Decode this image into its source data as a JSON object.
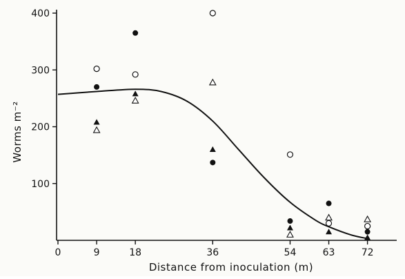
{
  "chart_data": {
    "type": "scatter",
    "title": "",
    "xlabel": "Distance from inoculation  (m)",
    "ylabel": "Worms  m⁻²",
    "xlim": [
      0,
      78
    ],
    "ylim": [
      0,
      400
    ],
    "x_ticks": [
      0,
      9,
      18,
      36,
      54,
      63,
      72
    ],
    "y_ticks": [
      100,
      200,
      300,
      400
    ],
    "grid": false,
    "legend": "none",
    "series": [
      {
        "marker": "filled-circle",
        "points": [
          {
            "x": 9,
            "y": 270
          },
          {
            "x": 18,
            "y": 365
          },
          {
            "x": 36,
            "y": 137
          },
          {
            "x": 54,
            "y": 34
          },
          {
            "x": 63,
            "y": 65
          },
          {
            "x": 72,
            "y": 15
          }
        ]
      },
      {
        "marker": "open-circle",
        "points": [
          {
            "x": 9,
            "y": 302
          },
          {
            "x": 18,
            "y": 292
          },
          {
            "x": 36,
            "y": 400
          },
          {
            "x": 54,
            "y": 151
          },
          {
            "x": 63,
            "y": 30
          },
          {
            "x": 72,
            "y": 25
          }
        ]
      },
      {
        "marker": "filled-triangle",
        "points": [
          {
            "x": 9,
            "y": 208
          },
          {
            "x": 18,
            "y": 258
          },
          {
            "x": 36,
            "y": 160
          },
          {
            "x": 54,
            "y": 22
          },
          {
            "x": 63,
            "y": 15
          },
          {
            "x": 72,
            "y": 5
          }
        ]
      },
      {
        "marker": "open-triangle",
        "points": [
          {
            "x": 9,
            "y": 194
          },
          {
            "x": 18,
            "y": 246
          },
          {
            "x": 36,
            "y": 278
          },
          {
            "x": 54,
            "y": 10
          },
          {
            "x": 63,
            "y": 40
          },
          {
            "x": 72,
            "y": 37
          }
        ]
      }
    ],
    "fitted_curve": [
      {
        "x": 0,
        "y": 257
      },
      {
        "x": 9,
        "y": 262
      },
      {
        "x": 18,
        "y": 266
      },
      {
        "x": 24,
        "y": 262
      },
      {
        "x": 30,
        "y": 245
      },
      {
        "x": 36,
        "y": 210
      },
      {
        "x": 42,
        "y": 160
      },
      {
        "x": 48,
        "y": 110
      },
      {
        "x": 54,
        "y": 67
      },
      {
        "x": 60,
        "y": 35
      },
      {
        "x": 63,
        "y": 24
      },
      {
        "x": 68,
        "y": 10
      },
      {
        "x": 72,
        "y": 3
      }
    ],
    "colors": {
      "ink": "#111111",
      "background": "#fbfbf8"
    }
  }
}
